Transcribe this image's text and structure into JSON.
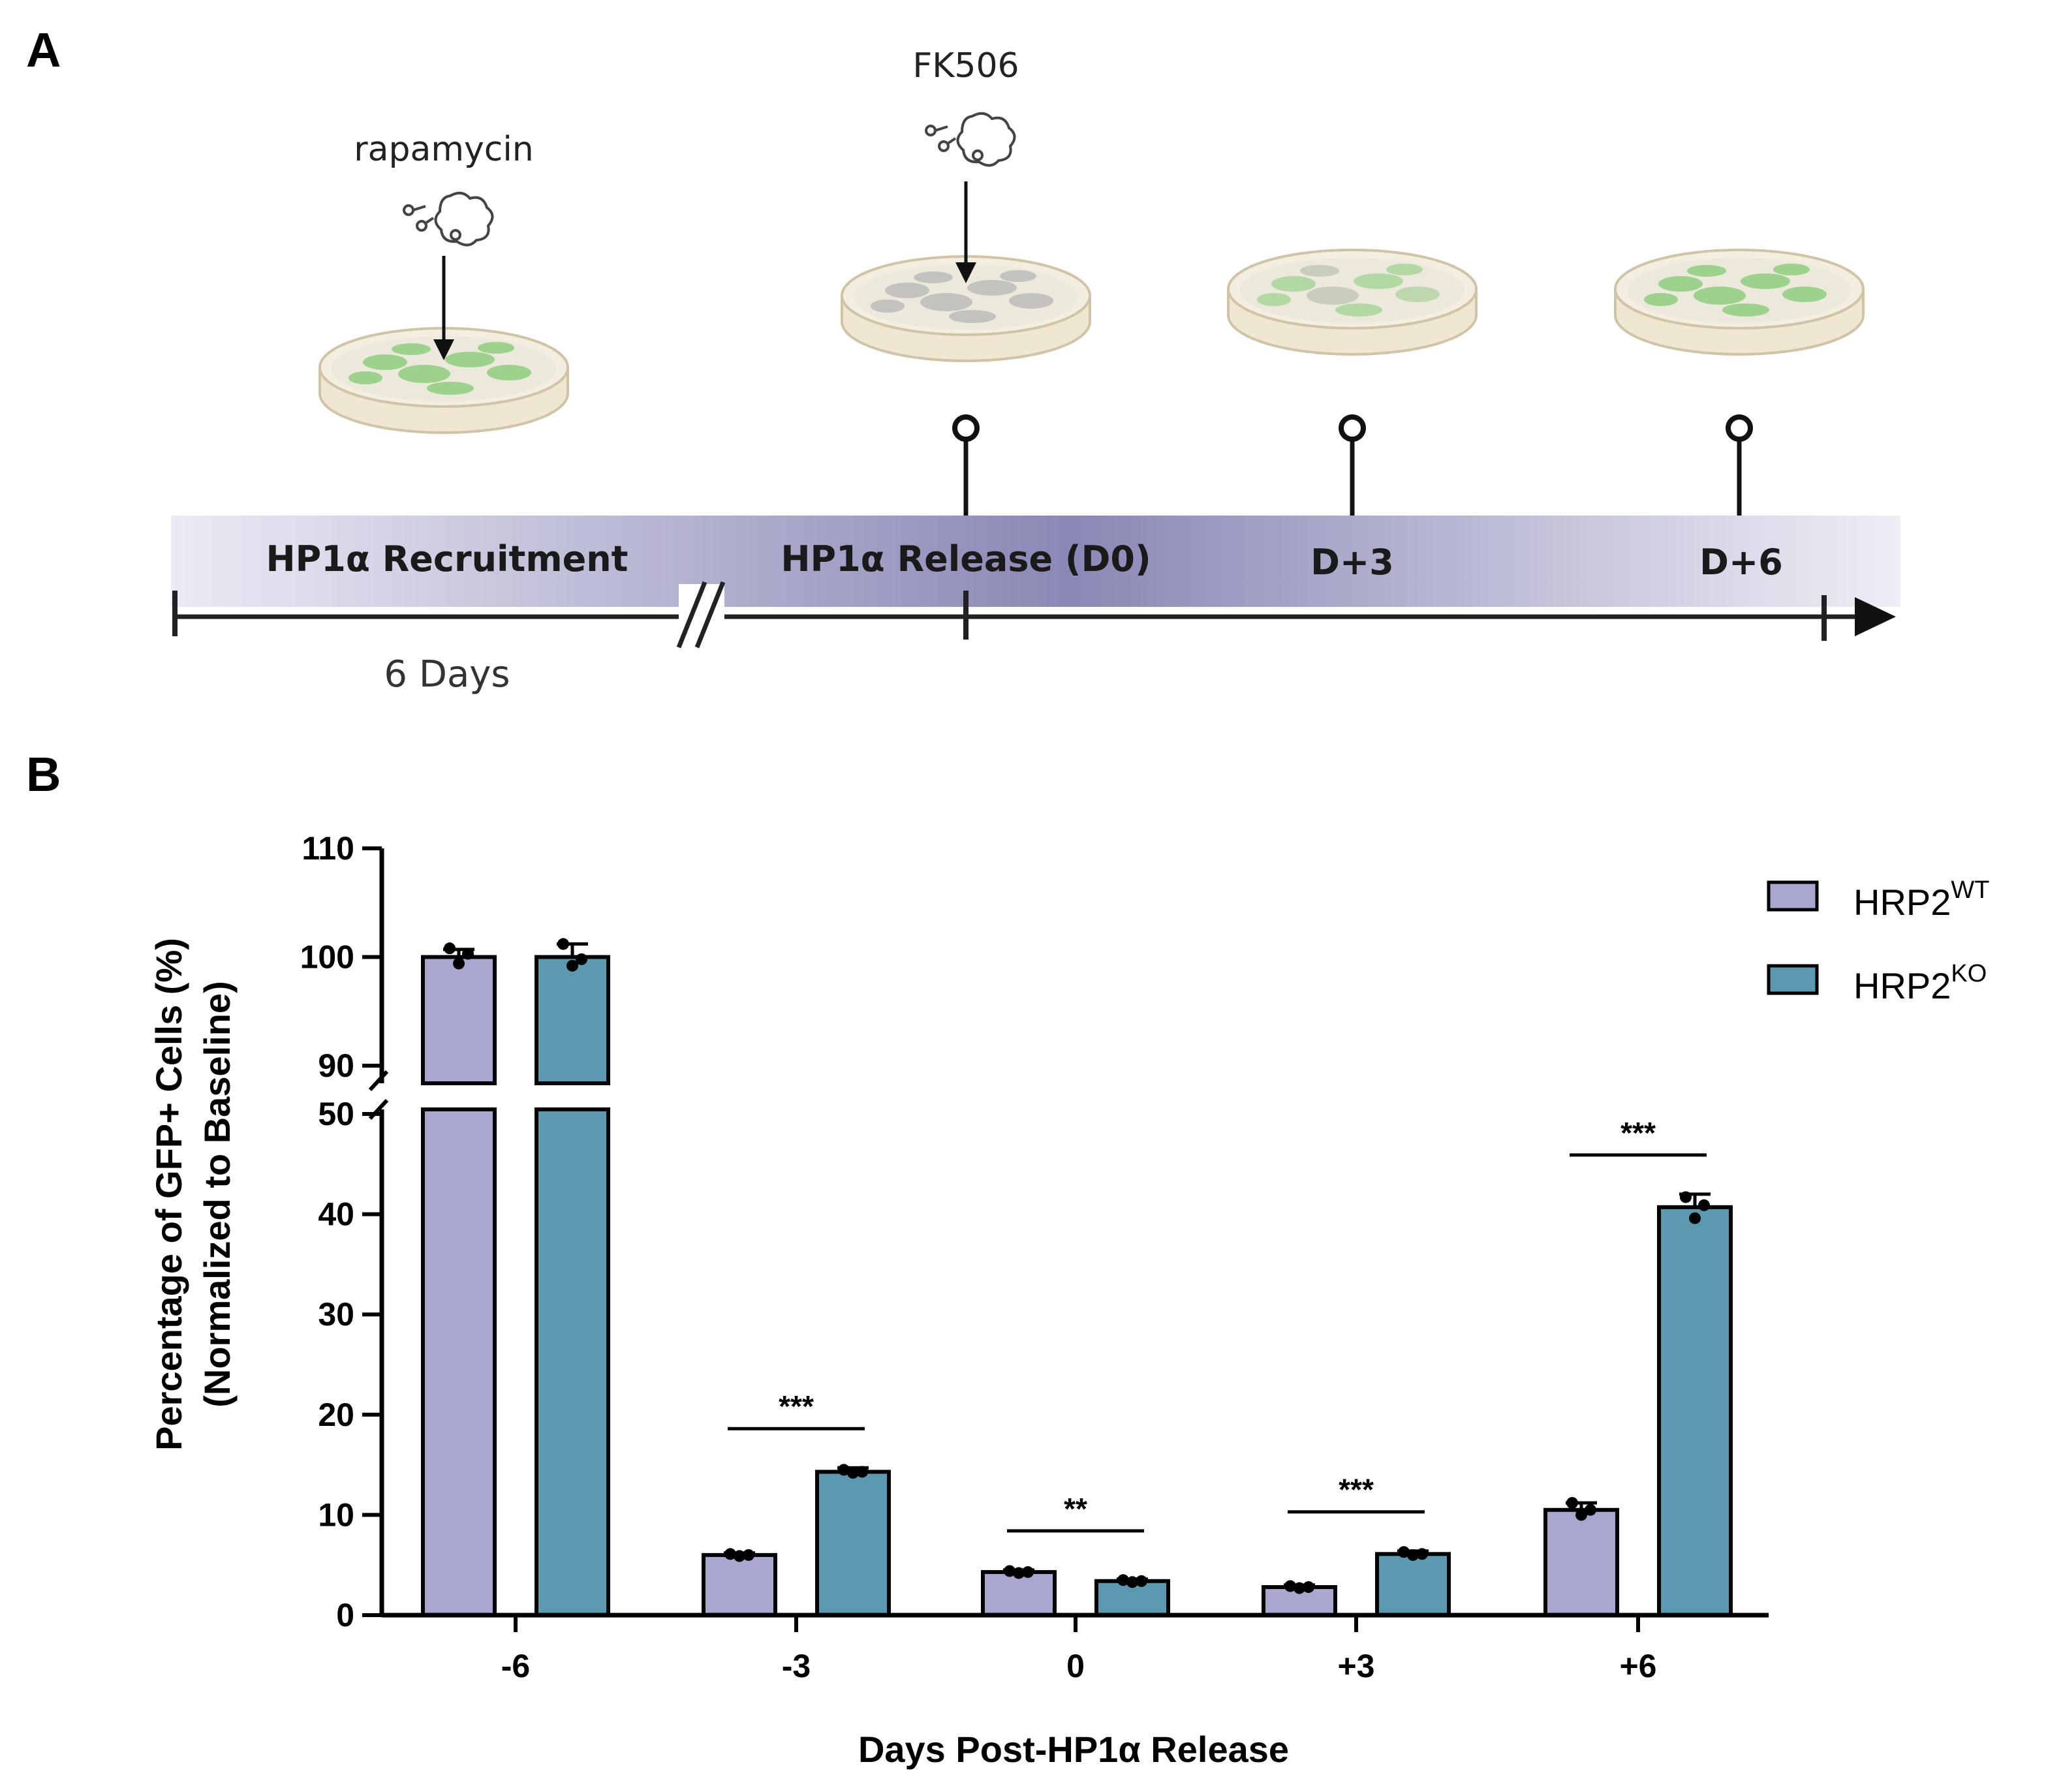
{
  "panel_a": {
    "label": "A",
    "drugs": {
      "rapamycin": "rapamycin",
      "fk506": "FK506"
    },
    "timeline": {
      "recruitment": "HP1α Recruitment",
      "release": "HP1α Release (D0)",
      "d3": "D+3",
      "d6": "D+6",
      "duration": "6 Days"
    },
    "icons": [
      "molecule-icon",
      "petri-dish-icon",
      "pin-marker-icon",
      "arrow-icon"
    ]
  },
  "panel_b": {
    "label": "B"
  },
  "chart_data": {
    "type": "bar",
    "ylabel_line1": "Percentage of GFP+ Cells (%)",
    "ylabel_line2": "(Normalized to Baseline)",
    "xlabel": "Days Post-HP1α Release",
    "categories": [
      "-6",
      "-3",
      "0",
      "+3",
      "+6"
    ],
    "series": [
      {
        "name": "HRP2",
        "sup": "WT",
        "color": "#a9a6cf",
        "values": [
          100,
          6,
          4.3,
          2.8,
          10.5
        ],
        "errors": [
          0.7,
          0.2,
          0.2,
          0.2,
          0.7
        ],
        "points": [
          [
            100.8,
            99.4,
            100.3
          ],
          [
            6.1,
            5.9,
            6.0
          ],
          [
            4.4,
            4.2,
            4.3
          ],
          [
            2.9,
            2.7,
            2.8
          ],
          [
            11.2,
            10.0,
            10.5
          ]
        ]
      },
      {
        "name": "HRP2",
        "sup": "KO",
        "color": "#5a99b0",
        "values": [
          100,
          14.3,
          3.4,
          6.1,
          40.7
        ],
        "errors": [
          1.2,
          0.4,
          0.2,
          0.3,
          1.3
        ],
        "points": [
          [
            101.2,
            99.2,
            99.8
          ],
          [
            14.5,
            14.2,
            14.3
          ],
          [
            3.5,
            3.3,
            3.4
          ],
          [
            6.3,
            6.0,
            6.1
          ],
          [
            41.7,
            39.6,
            40.9
          ]
        ]
      }
    ],
    "significance": [
      "",
      "***",
      "**",
      "***",
      "***"
    ],
    "lower_axis": {
      "range": [
        0,
        50
      ],
      "ticks": [
        0,
        10,
        20,
        30,
        40,
        50
      ]
    },
    "upper_axis": {
      "range": [
        90,
        110
      ],
      "ticks": [
        90,
        100,
        110
      ]
    },
    "axis_break": true,
    "grid": false,
    "legend_position": "top-right"
  }
}
